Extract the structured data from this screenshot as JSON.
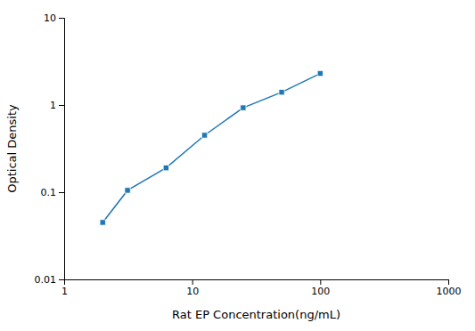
{
  "chart_data": {
    "type": "line",
    "x_label": "Rat EP Concentration(ng/mL)",
    "y_label": "Optical Density",
    "x": [
      2.0,
      3.125,
      6.25,
      12.5,
      25.0,
      50.0,
      100.0
    ],
    "values": [
      0.045,
      0.105,
      0.19,
      0.45,
      0.93,
      1.4,
      2.3
    ],
    "xlim": [
      1,
      1000
    ],
    "ylim": [
      0.01,
      10
    ],
    "xticks": [
      1,
      10,
      100,
      1000
    ],
    "yticks": [
      0.01,
      0.1,
      1,
      10
    ],
    "log": true,
    "grid": false,
    "marker": "square"
  }
}
